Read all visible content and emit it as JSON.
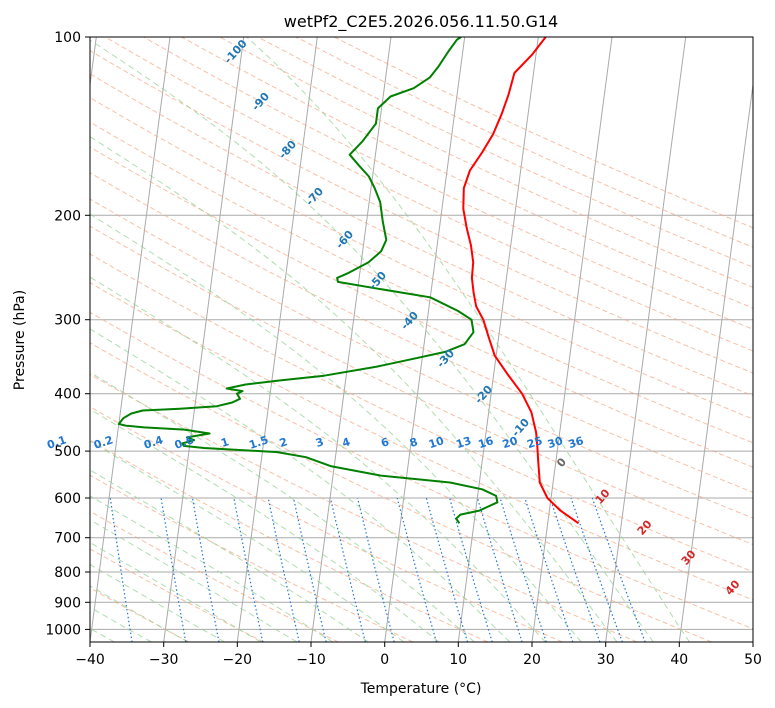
{
  "chart_data": {
    "type": "line",
    "title": "wetPf2_C2E5.2026.056.11.50.G14",
    "xlabel": "Temperature (°C)",
    "ylabel": "Pressure (hPa)",
    "xlim": [
      -40,
      50
    ],
    "ylim": [
      1050,
      100
    ],
    "y_scale": "log",
    "grid": true,
    "x_ticks": [
      -40,
      -30,
      -20,
      -10,
      0,
      10,
      20,
      30,
      40,
      50
    ],
    "y_ticks": [
      100,
      200,
      300,
      400,
      500,
      600,
      700,
      800,
      900,
      1000
    ],
    "series": [
      {
        "color": "#ff0000",
        "points": [
          [
            24.2,
            662
          ],
          [
            21.5,
            630
          ],
          [
            19.5,
            600
          ],
          [
            18.2,
            565
          ],
          [
            17.6,
            520
          ],
          [
            17.2,
            490
          ],
          [
            16.8,
            465
          ],
          [
            15.8,
            430
          ],
          [
            14.2,
            400
          ],
          [
            11.8,
            370
          ],
          [
            9.8,
            345
          ],
          [
            8.6,
            320
          ],
          [
            7.6,
            300
          ],
          [
            6.4,
            285
          ],
          [
            5.8,
            270
          ],
          [
            5.3,
            255
          ],
          [
            5.2,
            240
          ],
          [
            4.6,
            225
          ],
          [
            3.7,
            210
          ],
          [
            2.9,
            195
          ],
          [
            2.6,
            180
          ],
          [
            3.1,
            168
          ],
          [
            4.4,
            157
          ],
          [
            5.6,
            146
          ],
          [
            6.4,
            135
          ],
          [
            7.0,
            125
          ],
          [
            7.4,
            115
          ],
          [
            9.5,
            107
          ],
          [
            11.0,
            100
          ]
        ]
      },
      {
        "color": "#008000",
        "points": [
          [
            8.0,
            662
          ],
          [
            7.5,
            650
          ],
          [
            8.0,
            640
          ],
          [
            10.5,
            630
          ],
          [
            12.8,
            610
          ],
          [
            12.5,
            595
          ],
          [
            10.5,
            580
          ],
          [
            6.0,
            565
          ],
          [
            -3.5,
            550
          ],
          [
            -10.5,
            530
          ],
          [
            -14.0,
            512
          ],
          [
            -18.0,
            502
          ],
          [
            -28.0,
            494
          ],
          [
            -30.8,
            490
          ],
          [
            -31.0,
            485
          ],
          [
            -29.5,
            479
          ],
          [
            -30.5,
            474
          ],
          [
            -27.5,
            467
          ],
          [
            -31.0,
            460
          ],
          [
            -36.5,
            456
          ],
          [
            -39.0,
            453
          ],
          [
            -40,
            450
          ],
          [
            -39.5,
            440
          ],
          [
            -38.5,
            432
          ],
          [
            -37.0,
            427
          ],
          [
            -32.0,
            424
          ],
          [
            -27.0,
            420
          ],
          [
            -25.0,
            414
          ],
          [
            -24.0,
            408
          ],
          [
            -24.5,
            400
          ],
          [
            -23.8,
            396
          ],
          [
            -26.0,
            392
          ],
          [
            -23.5,
            386
          ],
          [
            -19.0,
            380
          ],
          [
            -13.0,
            373
          ],
          [
            -6.0,
            360
          ],
          [
            -1.5,
            350
          ],
          [
            3.0,
            340
          ],
          [
            5.5,
            330
          ],
          [
            6.5,
            315
          ],
          [
            6.0,
            300
          ],
          [
            4.0,
            290
          ],
          [
            0.0,
            275
          ],
          [
            -8.0,
            265
          ],
          [
            -12.8,
            259
          ],
          [
            -13.0,
            255
          ],
          [
            -11.5,
            250
          ],
          [
            -9.0,
            240
          ],
          [
            -7.5,
            230
          ],
          [
            -7.0,
            220
          ],
          [
            -7.8,
            205
          ],
          [
            -8.5,
            190
          ],
          [
            -9.5,
            180
          ],
          [
            -10.5,
            172
          ],
          [
            -12.0,
            165
          ],
          [
            -13.5,
            158
          ],
          [
            -12.0,
            150
          ],
          [
            -10.5,
            140
          ],
          [
            -10.5,
            132
          ],
          [
            -9.0,
            126
          ],
          [
            -6.0,
            122
          ],
          [
            -4.0,
            117
          ],
          [
            -3.0,
            112
          ],
          [
            -2.0,
            106
          ],
          [
            -1.0,
            101
          ],
          [
            -0.5,
            100
          ]
        ]
      }
    ],
    "dry_adiabat_labels": [
      "-100",
      "-90",
      "-80",
      "-70",
      "-60",
      "-50",
      "-40",
      "-30",
      "-20",
      "-10",
      "0",
      "10",
      "20",
      "30",
      "40"
    ],
    "mixing_ratio_labels": [
      "0.1",
      "0.2",
      "0.4",
      "0.6",
      "1",
      "1.5",
      "2",
      "3",
      "4",
      "6",
      "8",
      "10",
      "13",
      "16",
      "20",
      "25",
      "30",
      "36"
    ],
    "mixing_ratio_values": [
      0.1,
      0.2,
      0.4,
      0.6,
      1,
      1.5,
      2,
      3,
      4,
      6,
      8,
      10,
      13,
      16,
      20,
      25,
      30,
      36
    ],
    "colors": {
      "temperature": "#ff0000",
      "dewpoint": "#008000",
      "isotherm": "#aaaaaa",
      "dry_adiabat": "#f4a582",
      "moist_adiabat": "#8fce8f",
      "mixing_ratio": "#1f77d4",
      "cold_label": "#1f77b4",
      "warm_label": "#d62728",
      "zero_label": "#666666"
    }
  }
}
